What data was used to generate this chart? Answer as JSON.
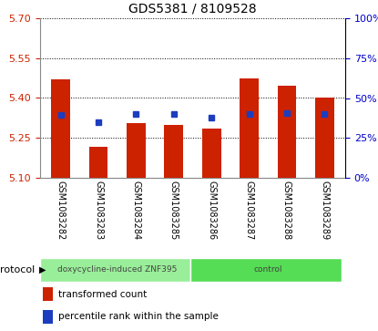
{
  "title": "GDS5381 / 8109528",
  "categories": [
    "GSM1083282",
    "GSM1083283",
    "GSM1083284",
    "GSM1083285",
    "GSM1083286",
    "GSM1083287",
    "GSM1083288",
    "GSM1083289"
  ],
  "red_values": [
    5.47,
    5.215,
    5.305,
    5.3,
    5.285,
    5.475,
    5.445,
    5.4
  ],
  "blue_values": [
    5.335,
    5.31,
    5.34,
    5.34,
    5.325,
    5.34,
    5.345,
    5.34
  ],
  "ylim_left": [
    5.1,
    5.7
  ],
  "ylim_right": [
    0,
    100
  ],
  "left_ticks": [
    5.1,
    5.25,
    5.4,
    5.55,
    5.7
  ],
  "right_ticks": [
    0,
    25,
    50,
    75,
    100
  ],
  "bar_color": "#cc2200",
  "dot_color": "#1c3dbf",
  "protocol_groups": [
    {
      "label": "doxycycline-induced ZNF395",
      "start": 0,
      "end": 4,
      "color": "#99ee99"
    },
    {
      "label": "control",
      "start": 4,
      "end": 8,
      "color": "#55dd55"
    }
  ],
  "legend_red": "transformed count",
  "legend_blue": "percentile rank within the sample",
  "protocol_label": "protocol",
  "tick_color_left": "#cc2200",
  "tick_color_right": "#0000cc",
  "label_area_color": "#cccccc",
  "bar_width": 0.5
}
